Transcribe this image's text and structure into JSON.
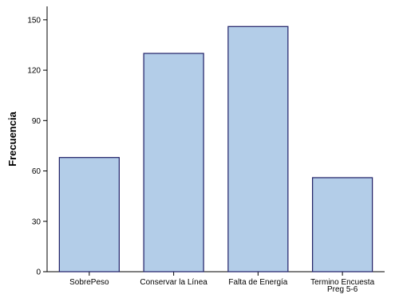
{
  "chart_data": {
    "type": "bar",
    "categories": [
      [
        "SobrePeso"
      ],
      [
        "Conservar la Línea"
      ],
      [
        "Falta de Energía"
      ],
      [
        "Termino Encuesta",
        "Preg 5-6"
      ]
    ],
    "values": [
      68,
      130,
      146,
      56
    ],
    "title": "",
    "xlabel": "",
    "ylabel": "Frecuencia",
    "ylim": [
      0,
      158
    ],
    "yticks": [
      0,
      30,
      60,
      90,
      120,
      150
    ],
    "grid": false,
    "legend": "none",
    "colors": {
      "bar_fill": "#b3cde8",
      "bar_stroke": "#1f1f66",
      "axis": "#000000"
    }
  }
}
